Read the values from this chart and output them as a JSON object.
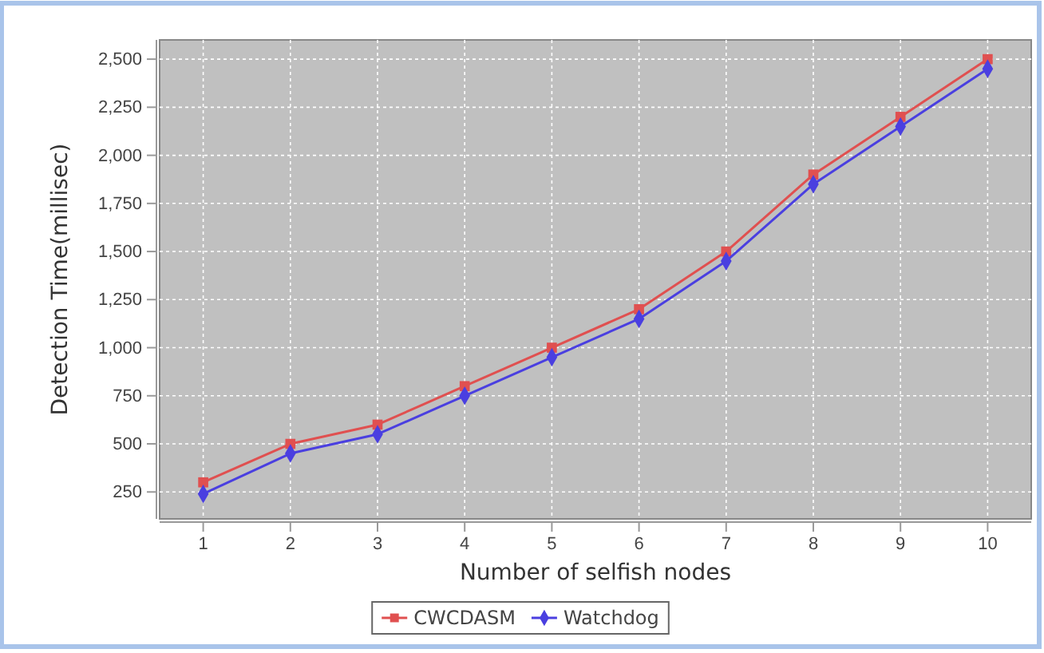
{
  "chart_data": {
    "type": "line",
    "xlabel": "Number of selfish nodes",
    "ylabel": "Detection Time(millisec)",
    "categories": [
      "1",
      "2",
      "3",
      "4",
      "5",
      "6",
      "7",
      "8",
      "9",
      "10"
    ],
    "series": [
      {
        "name": "CWCDASM",
        "color": "#e05050",
        "marker": "square",
        "values": [
          300,
          500,
          600,
          800,
          1000,
          1200,
          1500,
          1900,
          2200,
          2500
        ]
      },
      {
        "name": "Watchdog",
        "color": "#4a3fe0",
        "marker": "diamond",
        "values": [
          240,
          450,
          550,
          750,
          950,
          1150,
          1450,
          1850,
          2150,
          2450
        ]
      }
    ],
    "ylim": [
      110,
      2600
    ],
    "yticks": [
      {
        "value": 250,
        "label": "250"
      },
      {
        "value": 500,
        "label": "500"
      },
      {
        "value": 750,
        "label": "750"
      },
      {
        "value": 1000,
        "label": "1,000"
      },
      {
        "value": 1250,
        "label": "1,250"
      },
      {
        "value": 1500,
        "label": "1,500"
      },
      {
        "value": 1750,
        "label": "1,750"
      },
      {
        "value": 2000,
        "label": "2,000"
      },
      {
        "value": 2250,
        "label": "2,250"
      },
      {
        "value": 2500,
        "label": "2,500"
      }
    ],
    "grid": true,
    "legend": "bottom",
    "line_style": "solid"
  }
}
